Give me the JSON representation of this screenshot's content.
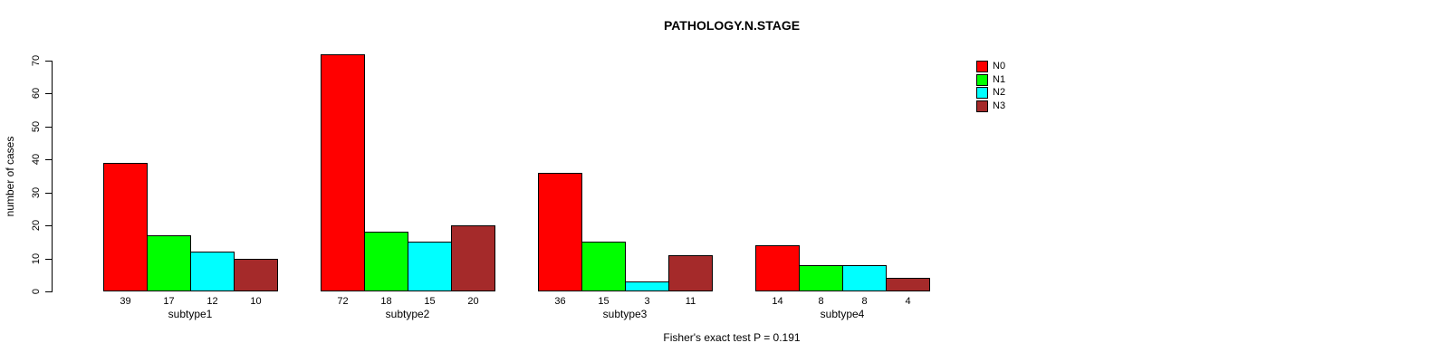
{
  "chart_data": {
    "type": "bar",
    "title": "PATHOLOGY.N.STAGE",
    "ylabel": "number of cases",
    "footnote": "Fisher's exact test P = 0.191",
    "categories": [
      "subtype1",
      "subtype2",
      "subtype3",
      "subtype4"
    ],
    "series": [
      {
        "name": "N0",
        "color": "#FF0000",
        "values": [
          39,
          72,
          36,
          14
        ]
      },
      {
        "name": "N1",
        "color": "#00FF00",
        "values": [
          17,
          18,
          15,
          8
        ]
      },
      {
        "name": "N2",
        "color": "#00FFFF",
        "values": [
          12,
          15,
          3,
          8
        ]
      },
      {
        "name": "N3",
        "color": "#A52A2A",
        "values": [
          10,
          20,
          11,
          4
        ]
      }
    ],
    "ylim": [
      0,
      70
    ],
    "yticks": [
      0,
      10,
      20,
      30,
      40,
      50,
      60,
      70
    ],
    "grid": false,
    "bar_value_labels_shown": true,
    "legend_position": "top-right"
  }
}
